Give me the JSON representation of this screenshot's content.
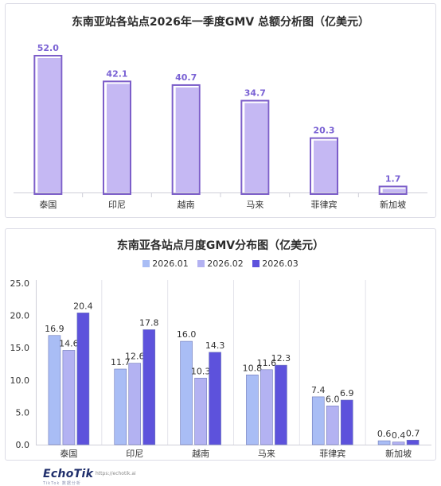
{
  "chart_data": [
    {
      "type": "bar",
      "title": "东南亚站各站点2026年一季度GMV 总额分析图（亿美元）",
      "categories": [
        "泰国",
        "印尼",
        "越南",
        "马来",
        "菲律宾",
        "新加坡"
      ],
      "values": [
        52.0,
        42.1,
        40.7,
        34.7,
        20.3,
        1.7
      ],
      "value_labels": [
        "52.0",
        "42.1",
        "40.7",
        "34.7",
        "20.3",
        "1.7"
      ],
      "ylim": [
        0,
        55
      ],
      "grid": false,
      "colors": {
        "fill": "#c5b8f3",
        "outline": "#7c5ec9",
        "label": "#7a62d4"
      }
    },
    {
      "type": "bar",
      "title": "东南亚各站点月度GMV分布图（亿美元）",
      "categories": [
        "泰国",
        "印尼",
        "越南",
        "马来",
        "菲律宾",
        "新加坡"
      ],
      "series": [
        {
          "name": "2026.01",
          "values": [
            16.9,
            11.7,
            16.0,
            10.8,
            7.4,
            0.6
          ],
          "labels": [
            "16.9",
            "11.7",
            "16.0",
            "10.8",
            "7.4",
            "0.6"
          ],
          "color": "#a9bdf5"
        },
        {
          "name": "2026.02",
          "values": [
            14.6,
            12.6,
            10.3,
            11.6,
            6.0,
            0.4
          ],
          "labels": [
            "14.6",
            "12.6",
            "10.3",
            "11.6",
            "6.0",
            "0.4"
          ],
          "color": "#b3b2f2"
        },
        {
          "name": "2026.03",
          "values": [
            20.4,
            17.8,
            14.3,
            12.3,
            6.9,
            0.7
          ],
          "labels": [
            "20.4",
            "17.8",
            "14.3",
            "12.3",
            "6.9",
            "0.7"
          ],
          "color": "#5d52dc"
        }
      ],
      "ylim": [
        0,
        25
      ],
      "yticks": [
        "0.0",
        "5.0",
        "10.0",
        "15.0",
        "20.0",
        "25.0"
      ],
      "legend": "top",
      "grid": false
    }
  ],
  "footer": {
    "logo": "EchoTik",
    "logo_sub": "TikTok 数据分析",
    "url": "https://echotik.ai"
  }
}
